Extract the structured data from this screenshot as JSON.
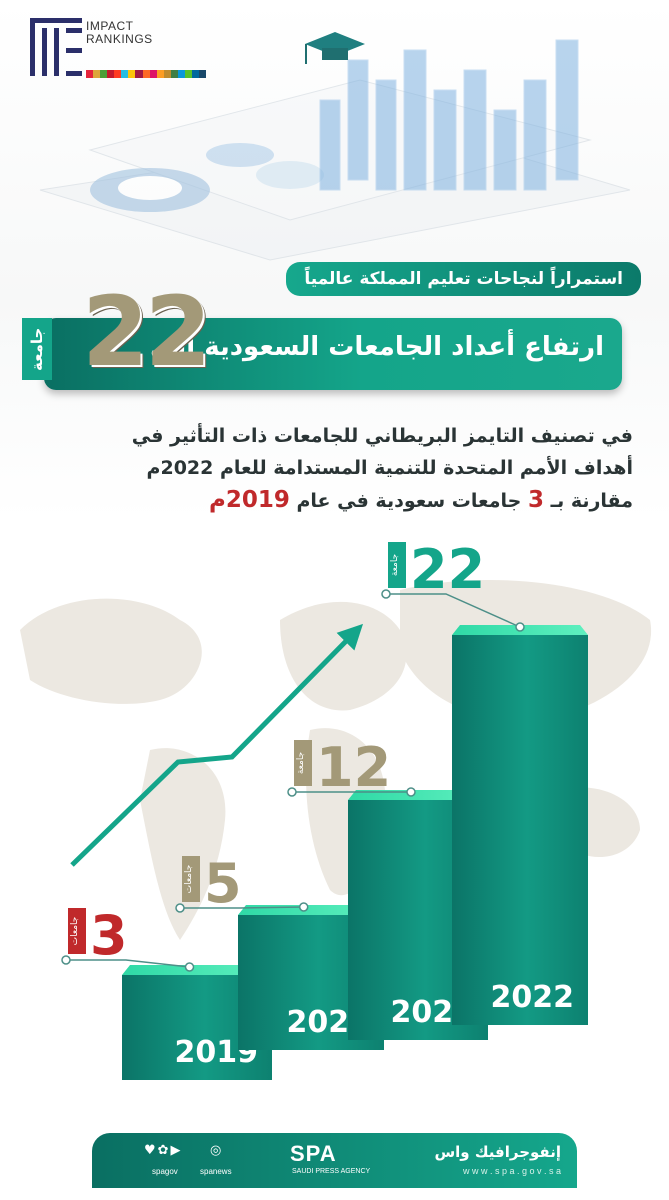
{
  "header": {
    "logo_line1": "IMPACT",
    "logo_line2": "RANKINGS"
  },
  "banner": {
    "tagline": "استمراراً لنجاحات تعليم المملكة عالمياً",
    "title": "ارتفاع أعداد الجامعات السعودية إلى",
    "number": "22",
    "unit": "جامعة"
  },
  "description": {
    "line1": "في تصنيف التايمز البريطاني للجامعات ذات التأثير في",
    "line2": "أهداف الأمم المتحدة للتنمية المستدامة للعام 2022م",
    "line3_a": "مقارنة بـ",
    "line3_num": "3",
    "line3_b": "جامعات سعودية في عام",
    "line3_year": "2019م"
  },
  "colors": {
    "teal": "#14a58a",
    "dark_teal": "#0a6f62",
    "gold": "#a39978",
    "red": "#c0292b"
  },
  "chart_data": {
    "type": "bar",
    "categories": [
      "2019",
      "2020",
      "2021",
      "2022"
    ],
    "values": [
      3,
      5,
      12,
      22
    ],
    "unit_labels": [
      "جامعات",
      "جامعات",
      "جامعة",
      "جامعة"
    ],
    "label_colors": [
      "#c0292b",
      "#a39978",
      "#a39978",
      "#14a58a"
    ],
    "title": "",
    "xlabel": "",
    "ylabel": "",
    "ylim": [
      0,
      22
    ],
    "grid": false,
    "trend_arrow": true
  },
  "footer": {
    "brand": "إنفوجرافيك واس",
    "url": "w w w . s p a . g o v . s a",
    "spa": "SPA",
    "spa_sub": "SAUDI PRESS AGENCY",
    "handle1": "spanews",
    "handle2": "spagov",
    "icon1": "instagram-icon",
    "icon2": "social-icons"
  }
}
